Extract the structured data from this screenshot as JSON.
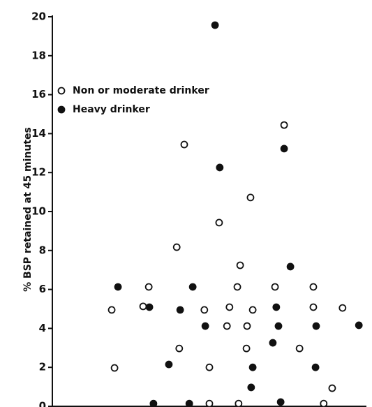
{
  "chart_data": {
    "type": "scatter",
    "ylabel": "% BSP retained at 45 minutes",
    "xlim": [
      0,
      100
    ],
    "ylim": [
      0,
      20
    ],
    "yticks": [
      0,
      2,
      4,
      6,
      8,
      10,
      12,
      14,
      16,
      18,
      20
    ],
    "legend": "upper left",
    "series": [
      {
        "name": "Non or moderate drinker",
        "color": "#111111",
        "filled": false,
        "x": [
          18.9,
          19.8,
          30.7,
          28.9,
          42,
          39.6,
          40.4,
          48.4,
          50,
          50,
          53.1,
          56.4,
          55.6,
          58.9,
          59.8,
          59.3,
          62,
          61.8,
          63.1,
          63.8,
          70.9,
          73.8,
          78.7,
          83.1,
          83.1,
          92.4,
          89.1,
          86.4
        ],
        "values": [
          4.95,
          1.97,
          6.13,
          5.13,
          13.44,
          8.17,
          2.97,
          4.95,
          2.0,
          0.14,
          9.43,
          5.09,
          4.12,
          6.13,
          7.24,
          0.14,
          4.12,
          2.97,
          10.72,
          4.95,
          6.13,
          14.44,
          2.97,
          6.13,
          5.09,
          5.05,
          0.93,
          0.14
        ]
      },
      {
        "name": "Heavy drinker",
        "color": "#111111",
        "filled": true,
        "x": [
          20.9,
          30.9,
          32.2,
          37.1,
          40.7,
          43.6,
          44.7,
          48.7,
          51.8,
          53.3,
          63.3,
          63.8,
          70.2,
          71.3,
          72,
          72.7,
          73.8,
          75.8,
          83.8,
          84,
          97.6
        ],
        "values": [
          6.13,
          5.09,
          0.14,
          2.15,
          4.95,
          0.14,
          6.13,
          4.12,
          19.57,
          12.26,
          0.97,
          2.0,
          3.26,
          5.09,
          4.12,
          0.22,
          13.23,
          7.17,
          2.0,
          4.12,
          4.16
        ]
      }
    ]
  }
}
